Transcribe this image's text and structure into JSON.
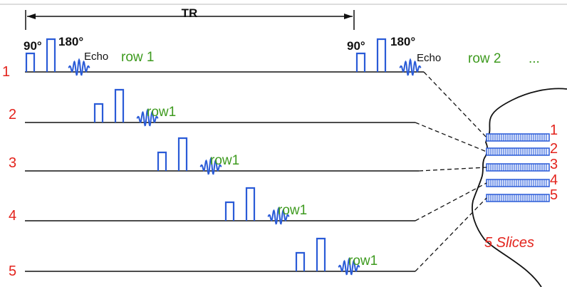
{
  "tr_label": "TR",
  "sequences": [
    {
      "number": "1",
      "first": {
        "flip_90": "90°",
        "flip_180": "180°",
        "echo": "Echo",
        "row_label": "row 1"
      },
      "second": {
        "flip_90": "90°",
        "flip_180": "180°",
        "echo": "Echo",
        "row_label": "row 2",
        "continuation": "..."
      }
    },
    {
      "number": "2",
      "row_label": "row1"
    },
    {
      "number": "3",
      "row_label": "row1"
    },
    {
      "number": "4",
      "row_label": "row1"
    },
    {
      "number": "5",
      "row_label": "row1"
    }
  ],
  "slices": {
    "numbers": [
      "1",
      "2",
      "3",
      "4",
      "5"
    ],
    "caption": "5 Slices"
  }
}
